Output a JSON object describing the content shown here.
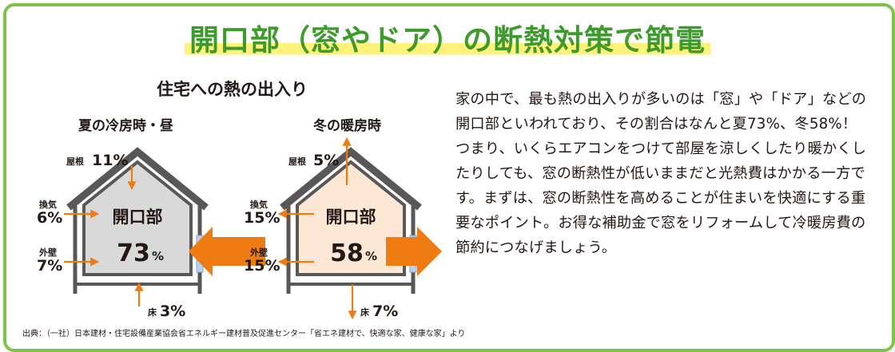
{
  "title": "開口部（窓やドア）の断熱対策で節電",
  "diagram": {
    "subtitle": "住宅への熱の出入り",
    "summer": {
      "heading": "夏の冷房時・昼",
      "center_label": "開口部",
      "center_value": "73",
      "pct": "%",
      "roof": {
        "label": "屋根",
        "value": "11%"
      },
      "vent": {
        "label": "換気",
        "value": "6%"
      },
      "wall": {
        "label": "外壁",
        "value": "7%"
      },
      "floor": {
        "label": "床",
        "value": "3%"
      }
    },
    "winter": {
      "heading": "冬の暖房時",
      "center_label": "開口部",
      "center_value": "58",
      "pct": "%",
      "roof": {
        "label": "屋根",
        "value": "5%"
      },
      "vent": {
        "label": "換気",
        "value": "15%"
      },
      "wall": {
        "label": "外壁",
        "value": "15%"
      },
      "floor": {
        "label": "床",
        "value": "7%"
      }
    }
  },
  "description": "家の中で、最も熱の出入りが多いのは「窓」や「ドア」などの開口部といわれており、その割合はなんと夏73%、冬58%！つまり、いくらエアコンをつけて部屋を涼しくしたり暖かくしたりしても、窓の断熱性が低いままだと光熱費はかかる一方です。まずは、窓の断熱性を高めることが住まいを快適にする重要なポイント。お得な補助金で窓をリフォームして冷暖房費の節約につなげましょう。",
  "source": "出典：（一社）日本建材・住宅設備産業協会省エネルギー建材普及促進センター「省エネ建材で、快適な家、健康な家」より",
  "colors": {
    "green_border": "#7dc24a",
    "title_green": "#3f9a2d",
    "highlight": "#fff27a",
    "arrow_orange": "#ee7c12",
    "summer_fill": "#d9d9d9",
    "winter_fill": "#fde8d6",
    "window_blue": "#b8d3ee"
  }
}
